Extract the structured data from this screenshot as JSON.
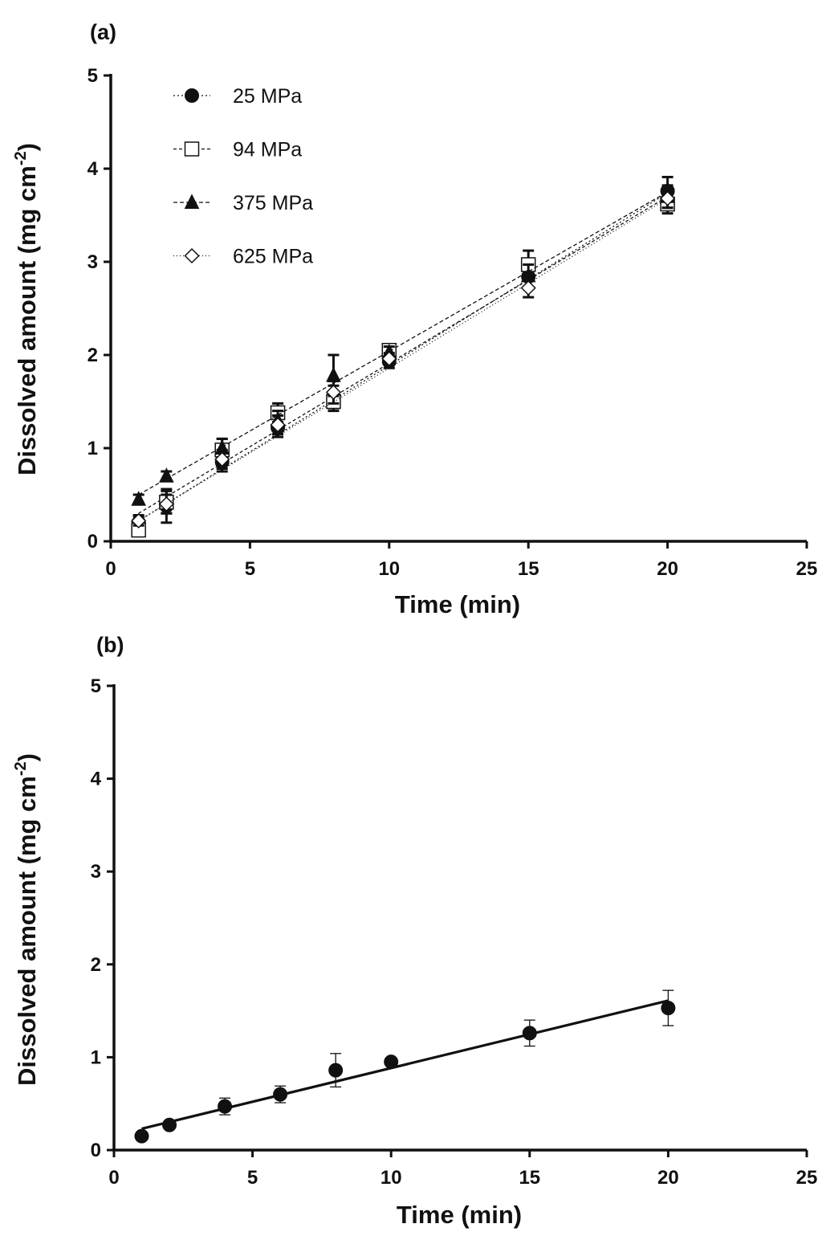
{
  "chart_data": [
    {
      "panel": "(a)",
      "type": "scatter",
      "xlabel": "Time (min)",
      "ylabel": "Dissolved amount (mg cm",
      "ylabel_sup": "-2",
      "ylabel_close": ")",
      "xlim": [
        0,
        25
      ],
      "ylim": [
        0,
        5
      ],
      "xticks": [
        0,
        5,
        10,
        15,
        20,
        25
      ],
      "yticks": [
        0,
        1,
        2,
        3,
        4,
        5
      ],
      "legend_position": "top-left",
      "x": [
        1,
        2,
        4,
        6,
        8,
        10,
        15,
        20
      ],
      "series": [
        {
          "name": "25 MPa",
          "marker": "filled-circle",
          "values": [
            0.2,
            0.38,
            0.85,
            1.22,
            1.55,
            1.93,
            2.84,
            3.76
          ],
          "errors": [
            0.08,
            0.18,
            0.1,
            0.1,
            0.12,
            0.07,
            0.12,
            0.15
          ],
          "fit": [
            0.22,
            3.74
          ],
          "dash": "2,3"
        },
        {
          "name": "94 MPa",
          "marker": "open-square",
          "values": [
            0.12,
            0.42,
            0.98,
            1.38,
            1.5,
            2.05,
            2.97,
            3.62
          ],
          "errors": [
            0.05,
            0.12,
            0.12,
            0.1,
            0.1,
            0.06,
            0.15,
            0.1
          ],
          "fit": [
            0.3,
            3.7
          ],
          "dash": "4,3"
        },
        {
          "name": "375 MPa",
          "marker": "filled-triangle",
          "values": [
            0.45,
            0.7,
            1.0,
            1.3,
            1.78,
            2.03,
            2.85,
            3.7
          ],
          "errors": [
            0.05,
            0.05,
            0.1,
            0.1,
            0.22,
            0.06,
            0.12,
            0.12
          ],
          "fit": [
            0.5,
            3.75
          ],
          "dash": "5,3"
        },
        {
          "name": "625 MPa",
          "marker": "open-diamond",
          "values": [
            0.22,
            0.4,
            0.88,
            1.25,
            1.6,
            1.96,
            2.72,
            3.68
          ],
          "errors": [
            0.05,
            0.1,
            0.1,
            0.1,
            0.12,
            0.06,
            0.1,
            0.1
          ],
          "fit": [
            0.22,
            3.68
          ],
          "dash": "1,3"
        }
      ]
    },
    {
      "panel": "(b)",
      "type": "scatter",
      "xlabel": "Time (min)",
      "ylabel": "Dissolved amount (mg cm",
      "ylabel_sup": "-2",
      "ylabel_close": ")",
      "xlim": [
        0,
        25
      ],
      "ylim": [
        0,
        5
      ],
      "xticks": [
        0,
        5,
        10,
        15,
        20,
        25
      ],
      "yticks": [
        0,
        1,
        2,
        3,
        4,
        5
      ],
      "x": [
        1,
        2,
        4,
        6,
        8,
        10,
        15,
        20
      ],
      "series": [
        {
          "name": "",
          "marker": "filled-circle",
          "values": [
            0.15,
            0.27,
            0.47,
            0.6,
            0.86,
            0.95,
            1.26,
            1.53
          ],
          "errors": [
            0.03,
            0.03,
            0.09,
            0.09,
            0.18,
            0.03,
            0.14,
            0.19
          ],
          "fit": [
            0.23,
            1.61
          ],
          "dash": ""
        }
      ]
    }
  ]
}
